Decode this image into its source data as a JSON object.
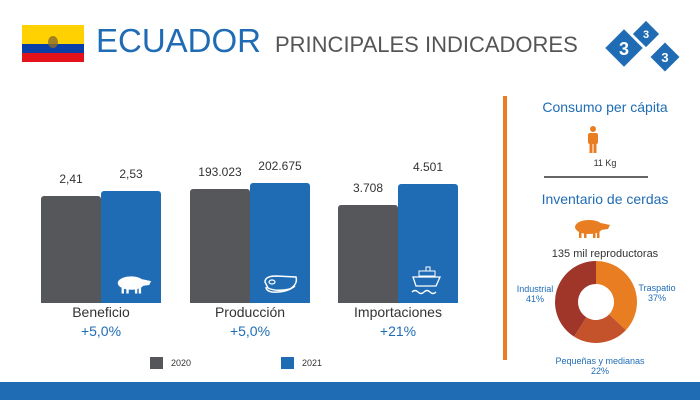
{
  "header": {
    "country": "ECUADOR",
    "subtitle": "PRINCIPALES INDICADORES",
    "logo_text": "333"
  },
  "colors": {
    "accent": "#1f6cb5",
    "orange": "#e87d22",
    "gray": "#55575b"
  },
  "chart_data": {
    "type": "bar",
    "categories": [
      "Beneficio",
      "Producción",
      "Importaciones"
    ],
    "series": [
      {
        "name": "2020",
        "values": [
          2.41,
          193023,
          3708
        ],
        "labels": [
          "2,41",
          "193.023",
          "3.708"
        ],
        "color": "#55575b"
      },
      {
        "name": "2021",
        "values": [
          2.53,
          202675,
          4501
        ],
        "labels": [
          "2,53",
          "202.675",
          "4.501"
        ],
        "color": "#1f6cb5"
      }
    ],
    "changes": [
      "+5,0%",
      "+5,0%",
      "+21%"
    ],
    "icons": [
      "pig-icon",
      "meat-icon",
      "ship-icon"
    ],
    "legend": "bottom"
  },
  "side": {
    "consumo_title": "Consumo per cápita",
    "consumo_value": "11 Kg",
    "inventario_title": "Inventario de cerdas",
    "inventario_value": "135 mil reproductoras",
    "donut": {
      "type": "pie",
      "segments": [
        {
          "label": "Traspatio",
          "pct_label": "37%",
          "value": 37,
          "color": "#e87d22"
        },
        {
          "label": "Pequeñas y medianas",
          "pct_label": "22%",
          "value": 22,
          "color": "#c4522a"
        },
        {
          "label": "Industrial",
          "pct_label": "41%",
          "value": 41,
          "color": "#a0352a"
        }
      ]
    }
  }
}
